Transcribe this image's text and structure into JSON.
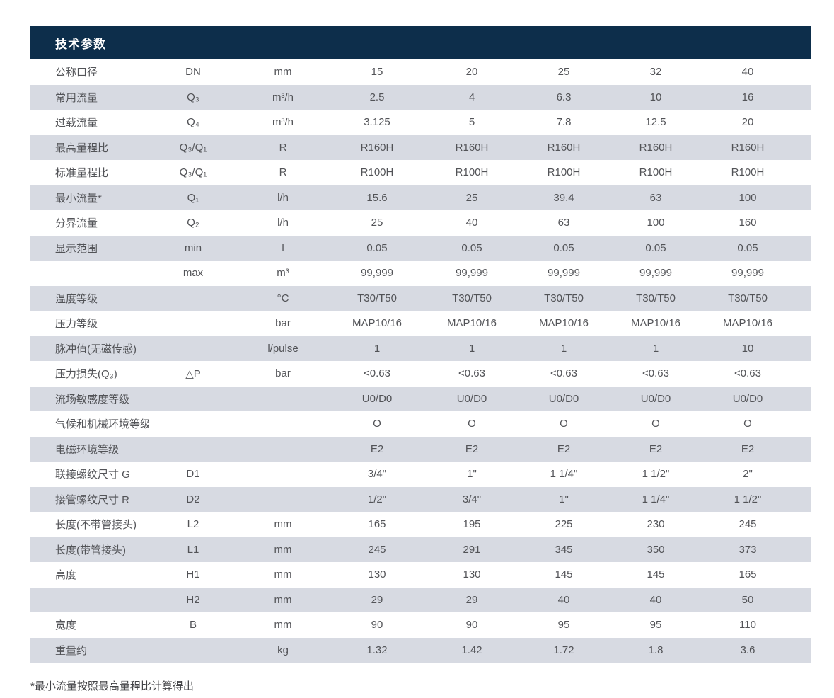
{
  "title": "技术参数",
  "footnote": "*最小流量按照最高量程比计算得出",
  "colors": {
    "header_bg": "#0d2e4b",
    "row_alt_bg": "#d7dae2",
    "text": "#525357"
  },
  "table": {
    "rows": [
      {
        "label": "公称口径",
        "symbol": "DN",
        "unit": "mm",
        "values": [
          "15",
          "20",
          "25",
          "32",
          "40"
        ]
      },
      {
        "label": "常用流量",
        "symbol": "Q₃",
        "unit": "m³/h",
        "values": [
          "2.5",
          "4",
          "6.3",
          "10",
          "16"
        ]
      },
      {
        "label": "过载流量",
        "symbol": "Q₄",
        "unit": "m³/h",
        "values": [
          "3.125",
          "5",
          "7.8",
          "12.5",
          "20"
        ]
      },
      {
        "label": "最高量程比",
        "symbol": "Q₃/Q₁",
        "unit": "R",
        "values": [
          "R160H",
          "R160H",
          "R160H",
          "R160H",
          "R160H"
        ]
      },
      {
        "label": "标准量程比",
        "symbol": "Q₃/Q₁",
        "unit": "R",
        "values": [
          "R100H",
          "R100H",
          "R100H",
          "R100H",
          "R100H"
        ]
      },
      {
        "label": "最小流量*",
        "symbol": "Q₁",
        "unit": "l/h",
        "values": [
          "15.6",
          "25",
          "39.4",
          "63",
          "100"
        ]
      },
      {
        "label": "分界流量",
        "symbol": "Q₂",
        "unit": "l/h",
        "values": [
          "25",
          "40",
          "63",
          "100",
          "160"
        ]
      },
      {
        "label": "显示范围",
        "symbol": "min",
        "unit": "l",
        "values": [
          "0.05",
          "0.05",
          "0.05",
          "0.05",
          "0.05"
        ]
      },
      {
        "label": "",
        "symbol": "max",
        "unit": "m³",
        "values": [
          "99,999",
          "99,999",
          "99,999",
          "99,999",
          "99,999"
        ]
      },
      {
        "label": "温度等级",
        "symbol": "",
        "unit": "°C",
        "values": [
          "T30/T50",
          "T30/T50",
          "T30/T50",
          "T30/T50",
          "T30/T50"
        ]
      },
      {
        "label": "压力等级",
        "symbol": "",
        "unit": "bar",
        "values": [
          "MAP10/16",
          "MAP10/16",
          "MAP10/16",
          "MAP10/16",
          "MAP10/16"
        ]
      },
      {
        "label": "脉冲值(无磁传感)",
        "symbol": "",
        "unit": "l/pulse",
        "values": [
          "1",
          "1",
          "1",
          "1",
          "10"
        ]
      },
      {
        "label": "压力损失(Q₃)",
        "symbol": "△P",
        "unit": "bar",
        "values": [
          "<0.63",
          "<0.63",
          "<0.63",
          "<0.63",
          "<0.63"
        ]
      },
      {
        "label": "流场敏感度等级",
        "symbol": "",
        "unit": "",
        "values": [
          "U0/D0",
          "U0/D0",
          "U0/D0",
          "U0/D0",
          "U0/D0"
        ]
      },
      {
        "label": "气候和机械环境等级",
        "symbol": "",
        "unit": "",
        "values": [
          "O",
          "O",
          "O",
          "O",
          "O"
        ]
      },
      {
        "label": "电磁环境等级",
        "symbol": "",
        "unit": "",
        "values": [
          "E2",
          "E2",
          "E2",
          "E2",
          "E2"
        ]
      },
      {
        "label": "联接螺纹尺寸 G",
        "symbol": "D1",
        "unit": "",
        "values": [
          "3/4\"",
          "1\"",
          "1 1/4\"",
          "1 1/2\"",
          "2\""
        ]
      },
      {
        "label": "接管螺纹尺寸 R",
        "symbol": "D2",
        "unit": "",
        "values": [
          "1/2\"",
          "3/4\"",
          "1\"",
          "1 1/4\"",
          "1 1/2\""
        ]
      },
      {
        "label": "长度(不带管接头)",
        "symbol": "L2",
        "unit": "mm",
        "values": [
          "165",
          "195",
          "225",
          "230",
          "245"
        ]
      },
      {
        "label": "长度(带管接头)",
        "symbol": "L1",
        "unit": "mm",
        "values": [
          "245",
          "291",
          "345",
          "350",
          "373"
        ]
      },
      {
        "label": "高度",
        "symbol": "H1",
        "unit": "mm",
        "values": [
          "130",
          "130",
          "145",
          "145",
          "165"
        ]
      },
      {
        "label": "",
        "symbol": "H2",
        "unit": "mm",
        "values": [
          "29",
          "29",
          "40",
          "40",
          "50"
        ]
      },
      {
        "label": "宽度",
        "symbol": "B",
        "unit": "mm",
        "values": [
          "90",
          "90",
          "95",
          "95",
          "110"
        ]
      },
      {
        "label": "重量约",
        "symbol": "",
        "unit": "kg",
        "values": [
          "1.32",
          "1.42",
          "1.72",
          "1.8",
          "3.6"
        ]
      }
    ]
  }
}
